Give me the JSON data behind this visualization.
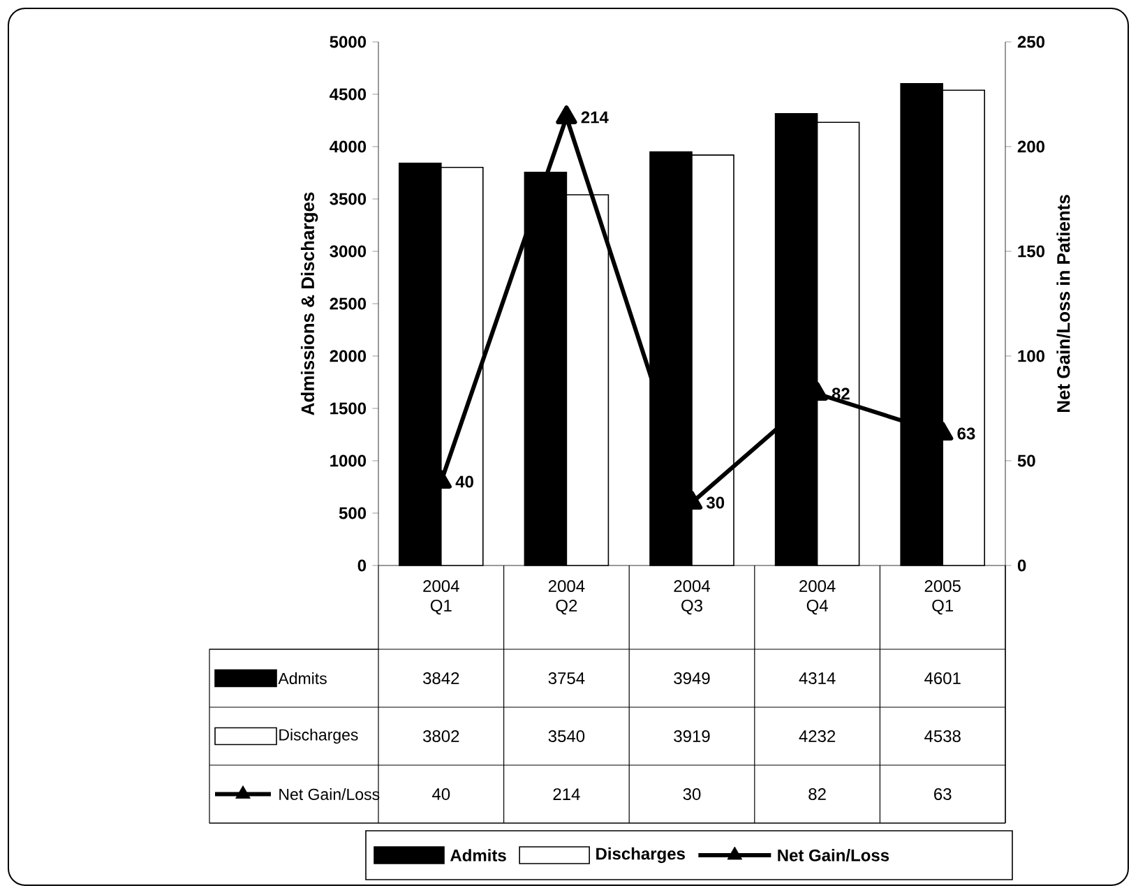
{
  "chart_data": {
    "type": "bar",
    "categories": [
      "2004 Q1",
      "2004 Q2",
      "2004 Q3",
      "2004 Q4",
      "2005 Q1"
    ],
    "series": [
      {
        "name": "Admits",
        "color": "#000000",
        "values": [
          3842,
          3754,
          3949,
          4314,
          4601
        ]
      },
      {
        "name": "Discharges",
        "color": "#ffffff",
        "values": [
          3802,
          3540,
          3919,
          4232,
          4538
        ]
      },
      {
        "name": "Net Gain/Loss",
        "type": "line",
        "axis": "y2",
        "marker": "triangle",
        "color": "#000000",
        "values": [
          40,
          214,
          30,
          82,
          63
        ],
        "value_labels": [
          "40",
          "214",
          "30",
          "82",
          "63"
        ]
      }
    ],
    "ylabel": "Admissions & Discharges",
    "y2label": "Net Gain/Loss in Patients",
    "ylim": [
      0,
      5000
    ],
    "yticks": [
      0,
      500,
      1000,
      1500,
      2000,
      2500,
      3000,
      3500,
      4000,
      4500,
      5000
    ],
    "y2lim": [
      0,
      250
    ],
    "y2ticks": [
      0,
      50,
      100,
      150,
      200,
      250
    ],
    "data_labels": true,
    "legend": "bottom",
    "grid": false
  }
}
